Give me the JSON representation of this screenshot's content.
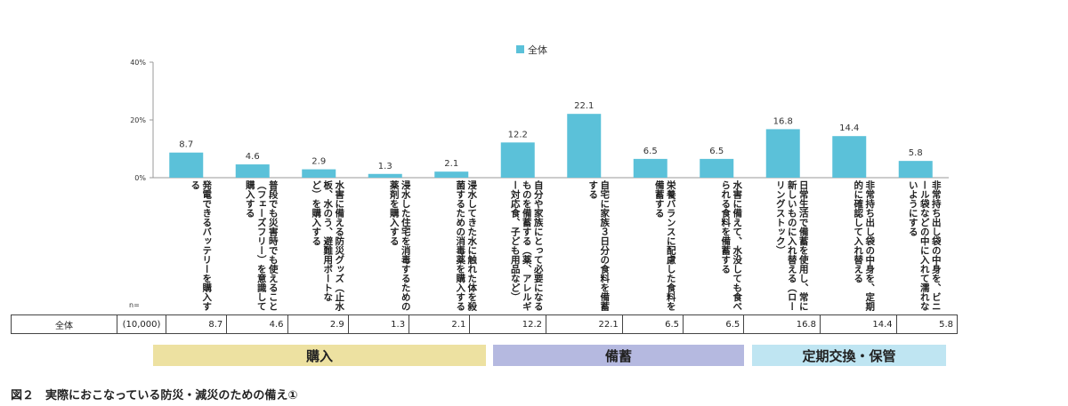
{
  "chart_data": {
    "type": "bar",
    "legend": "全体",
    "legend_color": "#5bc1d9",
    "ylim": [
      0,
      40
    ],
    "yticks": [
      "0%",
      "20%",
      "40%"
    ],
    "categories": [
      "発電できるバッテリーを購入する",
      "普段でも災害時でも使えること（フェーズフリー）を意識して購入する",
      "水害に備える防災グッズ（止水板、水のう、避難用ボートなど）を購入する",
      "浸水した住宅を消毒するための薬剤を購入する",
      "浸水してきた水に触れた体を殺菌するための消毒薬を購入する",
      "自分や家族にとって必要になるものを備蓄する（薬、アレルギー対応食、子ども用品など）",
      "自宅に家族３日分の食料を備蓄する",
      "栄養バランスに配慮した食料を備蓄する",
      "水害に備えて、水没しても食べられる食料を備蓄する",
      "日常生活で備蓄を使用し、常に新しいものに入れ替える（ローリングストック）",
      "非常持ち出し袋の中身を、定期的に確認して入れ替える",
      "非常持ち出し袋の中身を、ビニール袋などの中に入れて濡れないようにする"
    ],
    "series": [
      {
        "name": "全体",
        "values": [
          8.7,
          4.6,
          2.9,
          1.3,
          2.1,
          12.2,
          22.1,
          6.5,
          6.5,
          16.8,
          14.4,
          5.8
        ]
      }
    ]
  },
  "table": {
    "n_label": "n=",
    "row_label": "全体",
    "n_value": "(10,000)",
    "values": [
      "8.7",
      "4.6",
      "2.9",
      "1.3",
      "2.1",
      "12.2",
      "22.1",
      "6.5",
      "6.5",
      "16.8",
      "14.4",
      "5.8"
    ]
  },
  "groups": [
    {
      "label": "購入",
      "color": "#ede1a1"
    },
    {
      "label": "備蓄",
      "color": "#b5b9e0"
    },
    {
      "label": "定期交換・保管",
      "color": "#bfe5f2"
    }
  ],
  "caption": "図２　実際におこなっている防災・減災のための備え①"
}
